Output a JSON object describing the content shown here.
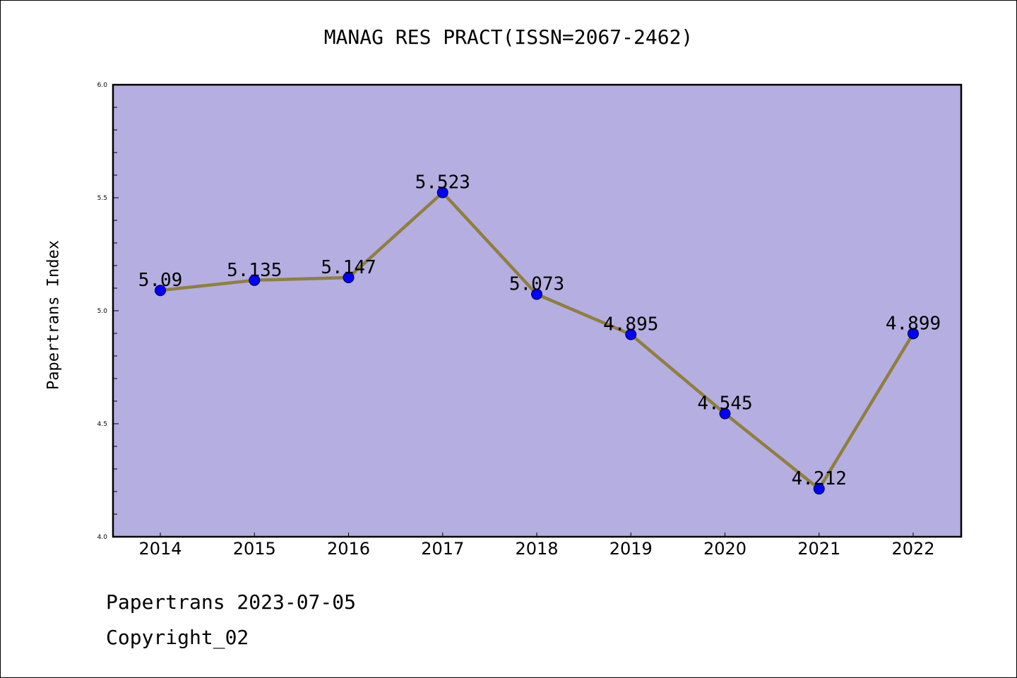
{
  "chart_data": {
    "type": "line",
    "title": "MANAG RES PRACT(ISSN=2067-2462)",
    "xlabel": "",
    "ylabel": "Papertrans Index",
    "categories": [
      "2014",
      "2015",
      "2016",
      "2017",
      "2018",
      "2019",
      "2020",
      "2021",
      "2022"
    ],
    "values": [
      5.09,
      5.135,
      5.147,
      5.523,
      5.073,
      4.895,
      4.545,
      4.212,
      4.899
    ],
    "data_labels": [
      "5.09",
      "5.135",
      "5.147",
      "5.523",
      "5.073",
      "4.895",
      "4.545",
      "4.212",
      "4.899"
    ],
    "ylim": [
      4.0,
      6.0
    ],
    "yticks": [
      "4.0",
      "4.5",
      "5.0",
      "5.5",
      "6.0"
    ],
    "grid": false,
    "colors": {
      "plot_background": "#b5aee1",
      "line": "#8f7f3e",
      "marker": "#0000ff"
    }
  },
  "footer": {
    "line1": "Papertrans 2023-07-05",
    "line2": "Copyright_02"
  }
}
